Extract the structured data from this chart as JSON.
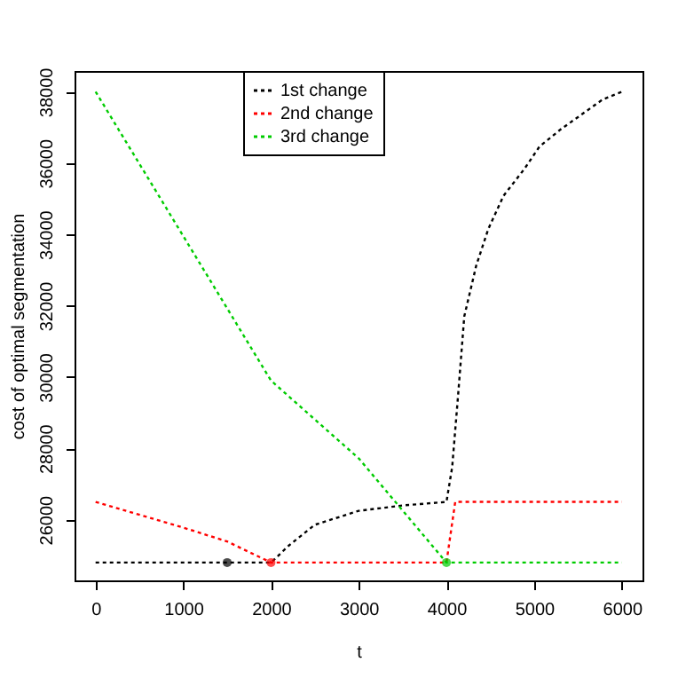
{
  "chart_data": {
    "type": "line",
    "xlabel": "t",
    "ylabel": "cost of optimal segmentation",
    "xlim": [
      -240,
      6235
    ],
    "ylim": [
      24300,
      38580
    ],
    "xticks": [
      0,
      1000,
      2000,
      3000,
      4000,
      5000,
      6000
    ],
    "yticks": [
      26000,
      28000,
      30000,
      32000,
      34000,
      36000,
      38000
    ],
    "grid": false,
    "legend": "top",
    "line_style": "dashed",
    "marker": "none",
    "series": [
      {
        "name": "1st change",
        "color": "#000000",
        "x": [
          0,
          1000,
          2000,
          2200,
          2500,
          3000,
          3500,
          4000,
          4065,
          4133,
          4203,
          4340,
          4477,
          4650,
          4890,
          5060,
          5300,
          5540,
          5780,
          6000
        ],
        "values": [
          24800,
          24800,
          24800,
          25270,
          25860,
          26250,
          26400,
          26500,
          27470,
          29500,
          31700,
          33130,
          34150,
          35080,
          35840,
          36460,
          36940,
          37360,
          37780,
          38000
        ]
      },
      {
        "name": "2nd change",
        "color": "#ff0000",
        "x": [
          0,
          1000,
          1500,
          2000,
          3000,
          4000,
          4100,
          5000,
          6000
        ],
        "values": [
          26500,
          25780,
          25390,
          24800,
          24800,
          24800,
          26500,
          26500,
          26500
        ]
      },
      {
        "name": "3rd change",
        "color": "#00cc00",
        "x": [
          0,
          2000,
          3000,
          4000,
          5000,
          6000
        ],
        "values": [
          38000,
          29900,
          27720,
          24800,
          24800,
          24800
        ]
      },
      {
        "type": "scatter",
        "marker": "circle",
        "color": "#000000",
        "x": [
          1500
        ],
        "values": [
          24800
        ]
      },
      {
        "type": "scatter",
        "marker": "circle",
        "color": "#ff0000",
        "x": [
          2000
        ],
        "values": [
          24800
        ]
      },
      {
        "type": "scatter",
        "marker": "circle",
        "color": "#00cc00",
        "x": [
          4000
        ],
        "values": [
          24800
        ]
      }
    ]
  }
}
